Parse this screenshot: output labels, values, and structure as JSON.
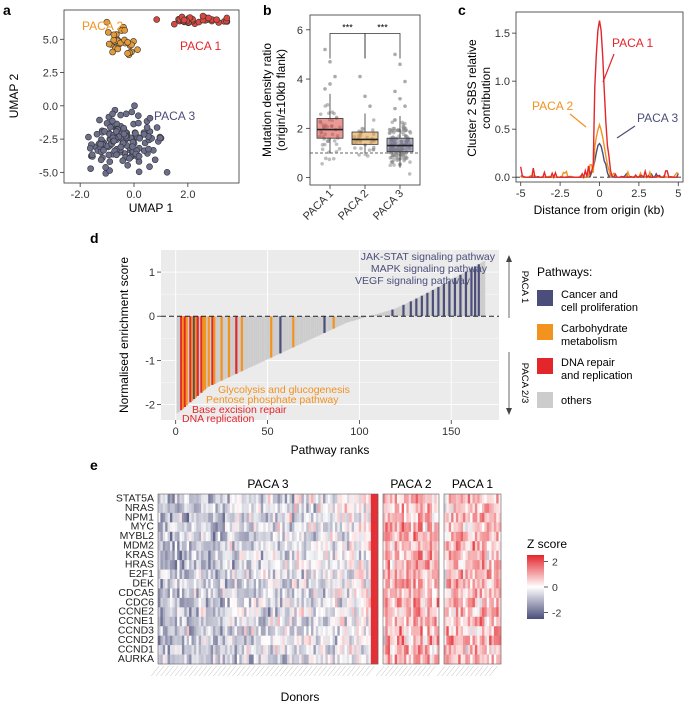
{
  "figure": {
    "panel_letters": [
      "a",
      "b",
      "c",
      "d",
      "e"
    ]
  },
  "colors": {
    "paca1": "#e3262c",
    "paca1_fill": "#d9473f",
    "paca2": "#f2921f",
    "paca2_fill": "#e39a3a",
    "paca3": "#4b4e7a",
    "paca3_fill": "#6c6e8e",
    "others": "#cccccc",
    "heat_low": "#4b4e7a",
    "heat_mid": "#ffffff",
    "heat_high": "#e3262c",
    "panel_bg": "#ebebeb"
  },
  "chart_data": [
    {
      "panel": "a",
      "type": "scatter",
      "xlabel": "UMAP 1",
      "ylabel": "UMAP 2",
      "xticks": [
        "-2.0",
        "0.0",
        "2.0"
      ],
      "xtick_values": [
        -2.0,
        0.0,
        2.0
      ],
      "yticks": [
        "5.0",
        "2.5",
        "0.0",
        "-2.5",
        "-5.0"
      ],
      "ytick_values": [
        5.0,
        2.5,
        0.0,
        -2.5,
        -5.0
      ],
      "xlim": [
        -2.6,
        3.9
      ],
      "ylim": [
        -5.8,
        7.2
      ],
      "clusters": [
        {
          "name": "PACA 1",
          "label": "PACA 1",
          "center": [
            2.35,
            6.45
          ],
          "spread": [
            0.55,
            0.18
          ],
          "n": 40,
          "seed": 11
        },
        {
          "name": "PACA 2",
          "label": "PACA 2",
          "center": [
            -0.45,
            4.75
          ],
          "spread": [
            0.32,
            0.55
          ],
          "n": 32,
          "seed": 23
        },
        {
          "name": "PACA 3",
          "label": "PACA 3",
          "center": [
            -0.45,
            -2.7
          ],
          "spread": [
            0.65,
            1.05
          ],
          "n": 145,
          "seed": 37
        }
      ]
    },
    {
      "panel": "b",
      "type": "box",
      "ylabel_lines": [
        "Mutation density ratio",
        "(origin/±10kb flank)"
      ],
      "categories": [
        "PACA 1",
        "PACA 2",
        "PACA 3"
      ],
      "ylim": [
        -0.3,
        6.6
      ],
      "yticks": [
        "6",
        "4",
        "2",
        "0"
      ],
      "ytick_values": [
        6,
        4,
        2,
        0
      ],
      "reference_line": 1.0,
      "boxes": [
        {
          "name": "PACA 1",
          "q1": 1.6,
          "median": 1.95,
          "q3": 2.4,
          "whisker_low": 1.0,
          "whisker_high": 3.4,
          "n": 45,
          "seed": 5
        },
        {
          "name": "PACA 2",
          "q1": 1.35,
          "median": 1.55,
          "q3": 1.85,
          "whisker_low": 1.0,
          "whisker_high": 2.6,
          "n": 34,
          "seed": 9
        },
        {
          "name": "PACA 3",
          "q1": 1.05,
          "median": 1.3,
          "q3": 1.6,
          "whisker_low": 0.4,
          "whisker_high": 2.5,
          "n": 150,
          "seed": 13
        }
      ],
      "outliers": [
        {
          "group": "PACA 1",
          "values": [
            5.2,
            4.7,
            4.1,
            3.6,
            3.8
          ]
        },
        {
          "group": "PACA 2",
          "values": [
            4.1,
            3.3,
            2.9
          ]
        },
        {
          "group": "PACA 3",
          "values": [
            5.0,
            4.6,
            3.9,
            3.5,
            3.2,
            2.9,
            2.8
          ]
        }
      ],
      "significance": [
        {
          "from": "PACA 1",
          "to": "PACA 2",
          "label": "***",
          "y": 5.85
        },
        {
          "from": "PACA 2",
          "to": "PACA 3",
          "label": "***",
          "y": 5.85
        }
      ]
    },
    {
      "panel": "c",
      "type": "line",
      "xlabel": "Distance from origin (kb)",
      "ylabel_lines": [
        "Cluster 2 SBS relative",
        "contribution"
      ],
      "xlim": [
        -5.3,
        5.3
      ],
      "ylim": [
        -0.05,
        1.72
      ],
      "xticks": [
        "-5",
        "-2.5",
        "0",
        "2.5",
        "5"
      ],
      "xtick_values": [
        -5,
        -2.5,
        0,
        2.5,
        5
      ],
      "yticks": [
        "1.5",
        "1.0",
        "0.5",
        "0.0"
      ],
      "ytick_values": [
        1.5,
        1.0,
        0.5,
        0.0
      ],
      "series": [
        {
          "name": "PACA 1",
          "label": "PACA 1",
          "peak": 1.63,
          "width": 0.28,
          "noise": 0.11,
          "seed": 41
        },
        {
          "name": "PACA 2",
          "label": "PACA 2",
          "peak": 0.52,
          "width": 0.3,
          "noise": 0.06,
          "seed": 53
        },
        {
          "name": "PACA 3",
          "label": "PACA 3",
          "peak": 0.35,
          "width": 0.25,
          "noise": 0.04,
          "seed": 67
        }
      ]
    },
    {
      "panel": "d",
      "type": "bar",
      "xlabel": "Pathway ranks",
      "ylabel": "Normalised enrichment score",
      "n_pathways": 168,
      "nes_min": -2.2,
      "nes_max": 1.25,
      "xlim": [
        -8,
        176
      ],
      "ylim": [
        -2.35,
        1.5
      ],
      "xticks": [
        "0",
        "50",
        "100",
        "150"
      ],
      "xtick_values": [
        0,
        50,
        100,
        150
      ],
      "yticks": [
        "1",
        "0",
        "-1",
        "-2"
      ],
      "ytick_values": [
        1,
        0,
        -1,
        -2
      ],
      "highlighted": [
        {
          "category": "dna",
          "ranks": [
            3,
            5,
            8,
            12,
            14,
            20,
            33
          ]
        },
        {
          "category": "carb",
          "ranks": [
            4,
            6,
            9,
            11,
            15,
            16,
            18,
            21,
            25,
            29,
            36,
            52,
            64,
            86
          ]
        },
        {
          "category": "cancer",
          "ranks": [
            10,
            57,
            81,
            118,
            124,
            128,
            131,
            134,
            137,
            140,
            143,
            146,
            149,
            152,
            155,
            158,
            161,
            163,
            165
          ]
        }
      ],
      "annotations_top": [
        "JAK-STAT signaling pathway",
        "MAPK signaling pathway",
        "VEGF signaling pathway"
      ],
      "annotations_bottom": [
        {
          "text": "Glycolysis and glucogenesis",
          "category": "carb"
        },
        {
          "text": "Pentose phosphate pathway",
          "category": "carb"
        },
        {
          "text": "Base excision repair",
          "category": "dna"
        },
        {
          "text": "DNA replication",
          "category": "dna"
        }
      ],
      "side_labels": [
        "PACA 1",
        "PACA 2/3"
      ],
      "legend_title": "Pathways:",
      "legend": [
        {
          "key": "cancer",
          "lines": [
            "Cancer and",
            "cell proliferation"
          ]
        },
        {
          "key": "carb",
          "lines": [
            "Carbohydrate",
            "metabolism"
          ]
        },
        {
          "key": "dna",
          "lines": [
            "DNA repair",
            "and replication"
          ]
        },
        {
          "key": "others",
          "lines": [
            "others"
          ]
        }
      ]
    },
    {
      "panel": "e",
      "type": "heatmap",
      "xlabel": "Donors",
      "groups": [
        {
          "name": "PACA 3",
          "n": 92,
          "level": -0.65,
          "seed": 71
        },
        {
          "name": "PACA 2",
          "n": 24,
          "level": 0.8,
          "seed": 83
        },
        {
          "name": "PACA 1",
          "n": 24,
          "level": 0.75,
          "seed": 97
        }
      ],
      "genes": [
        "STAT5A",
        "NRAS",
        "NPM1",
        "MYC",
        "MYBL2",
        "MDM2",
        "KRAS",
        "HRAS",
        "E2F1",
        "DEK",
        "CDCA5",
        "CDC6",
        "CCNE2",
        "CCNE1",
        "CCND3",
        "CCND2",
        "CCND1",
        "AURKA"
      ],
      "colorbar_title": "Z score",
      "colorbar_ticks": [
        "2",
        "0",
        "-2"
      ],
      "colorbar_tick_values": [
        2,
        0,
        -2
      ],
      "zlim": [
        -2.5,
        2.5
      ]
    }
  ]
}
